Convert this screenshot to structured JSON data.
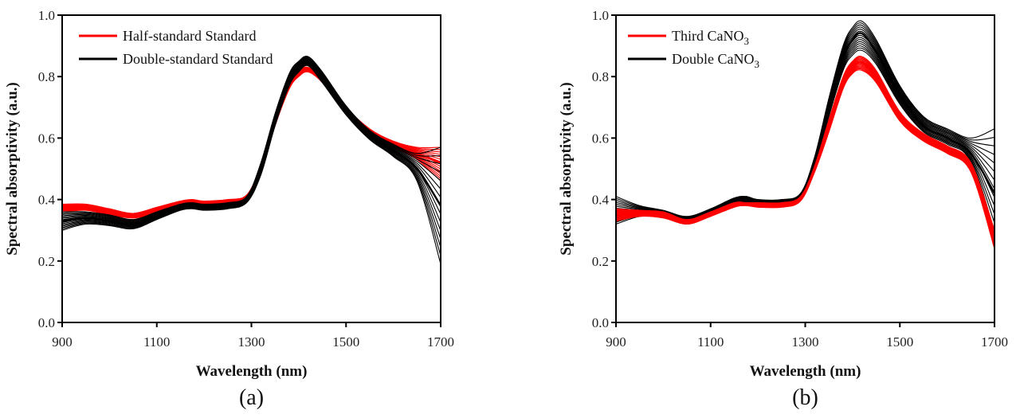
{
  "chart_data": [
    {
      "type": "line",
      "panel_label": "(a)",
      "xlabel": "Wavelength (nm)",
      "ylabel": "Spectral absorptivity (a.u.)",
      "xlim": [
        900,
        1700
      ],
      "ylim": [
        0.0,
        1.0
      ],
      "xticks": [
        "900",
        "1100",
        "1300",
        "1500",
        "1700"
      ],
      "yticks": [
        "0.0",
        "0.2",
        "0.4",
        "0.6",
        "0.8",
        "1.0"
      ],
      "legend_position": "top-left",
      "x": [
        900,
        950,
        1000,
        1050,
        1100,
        1150,
        1175,
        1200,
        1250,
        1290,
        1320,
        1350,
        1380,
        1400,
        1420,
        1450,
        1500,
        1550,
        1600,
        1650,
        1700
      ],
      "series": [
        {
          "name": "Half-standard Standard",
          "color": "#ff0000",
          "values": [
            0.37,
            0.375,
            0.36,
            0.35,
            0.365,
            0.39,
            0.395,
            0.39,
            0.395,
            0.41,
            0.5,
            0.65,
            0.77,
            0.81,
            0.825,
            0.79,
            0.69,
            0.62,
            0.58,
            0.55,
            0.52
          ],
          "lower": [
            0.36,
            0.365,
            0.35,
            0.34,
            0.355,
            0.38,
            0.385,
            0.38,
            0.385,
            0.4,
            0.49,
            0.64,
            0.76,
            0.8,
            0.815,
            0.78,
            0.68,
            0.61,
            0.57,
            0.53,
            0.46
          ],
          "upper": [
            0.385,
            0.385,
            0.37,
            0.355,
            0.375,
            0.395,
            0.4,
            0.395,
            0.4,
            0.415,
            0.51,
            0.66,
            0.78,
            0.82,
            0.83,
            0.8,
            0.7,
            0.63,
            0.59,
            0.57,
            0.57
          ]
        },
        {
          "name": "Double-standard Standard",
          "color": "#000000",
          "values": [
            0.33,
            0.34,
            0.33,
            0.32,
            0.35,
            0.375,
            0.38,
            0.375,
            0.38,
            0.4,
            0.5,
            0.66,
            0.79,
            0.83,
            0.85,
            0.8,
            0.69,
            0.61,
            0.56,
            0.5,
            0.38
          ],
          "lower": [
            0.3,
            0.32,
            0.315,
            0.305,
            0.335,
            0.365,
            0.37,
            0.365,
            0.37,
            0.39,
            0.48,
            0.64,
            0.77,
            0.815,
            0.835,
            0.78,
            0.675,
            0.595,
            0.54,
            0.46,
            0.19
          ],
          "upper": [
            0.36,
            0.36,
            0.35,
            0.335,
            0.36,
            0.385,
            0.39,
            0.385,
            0.39,
            0.41,
            0.52,
            0.68,
            0.81,
            0.85,
            0.865,
            0.815,
            0.705,
            0.625,
            0.58,
            0.55,
            0.57
          ]
        }
      ]
    },
    {
      "type": "line",
      "panel_label": "(b)",
      "xlabel": "Wavelength (nm)",
      "ylabel": "Spectral absorptivity (a.u.)",
      "xlim": [
        900,
        1700
      ],
      "ylim": [
        0.0,
        1.0
      ],
      "xticks": [
        "900",
        "1100",
        "1300",
        "1500",
        "1700"
      ],
      "yticks": [
        "0.0",
        "0.2",
        "0.4",
        "0.6",
        "0.8",
        "1.0"
      ],
      "legend_position": "top-left",
      "x": [
        900,
        950,
        1000,
        1050,
        1100,
        1150,
        1175,
        1200,
        1250,
        1290,
        1320,
        1350,
        1380,
        1400,
        1420,
        1450,
        1500,
        1550,
        1600,
        1650,
        1700
      ],
      "series": [
        {
          "name": "Double CaNO3",
          "legend_main": "Double CaNO",
          "legend_sub": "3",
          "color": "#000000",
          "values": [
            0.35,
            0.36,
            0.355,
            0.33,
            0.36,
            0.395,
            0.4,
            0.395,
            0.395,
            0.41,
            0.52,
            0.7,
            0.86,
            0.92,
            0.94,
            0.88,
            0.74,
            0.64,
            0.6,
            0.55,
            0.42
          ],
          "lower": [
            0.32,
            0.345,
            0.345,
            0.32,
            0.35,
            0.385,
            0.39,
            0.385,
            0.385,
            0.4,
            0.5,
            0.67,
            0.82,
            0.87,
            0.885,
            0.84,
            0.71,
            0.62,
            0.58,
            0.52,
            0.24
          ],
          "upper": [
            0.41,
            0.38,
            0.365,
            0.345,
            0.37,
            0.405,
            0.41,
            0.4,
            0.4,
            0.42,
            0.54,
            0.73,
            0.9,
            0.96,
            0.98,
            0.92,
            0.77,
            0.67,
            0.63,
            0.6,
            0.63
          ]
        },
        {
          "name": "Third CaNO3",
          "legend_main": "Third CaNO",
          "legend_sub": "3",
          "color": "#ff0000",
          "values": [
            0.35,
            0.355,
            0.35,
            0.325,
            0.35,
            0.38,
            0.385,
            0.38,
            0.38,
            0.4,
            0.5,
            0.64,
            0.78,
            0.83,
            0.845,
            0.8,
            0.67,
            0.6,
            0.56,
            0.5,
            0.26
          ],
          "lower": [
            0.33,
            0.345,
            0.34,
            0.32,
            0.345,
            0.375,
            0.38,
            0.375,
            0.375,
            0.395,
            0.49,
            0.62,
            0.76,
            0.81,
            0.82,
            0.78,
            0.655,
            0.59,
            0.55,
            0.49,
            0.24
          ],
          "upper": [
            0.37,
            0.365,
            0.36,
            0.335,
            0.36,
            0.39,
            0.39,
            0.39,
            0.39,
            0.41,
            0.51,
            0.66,
            0.8,
            0.85,
            0.865,
            0.82,
            0.685,
            0.615,
            0.575,
            0.52,
            0.3
          ]
        }
      ]
    }
  ]
}
